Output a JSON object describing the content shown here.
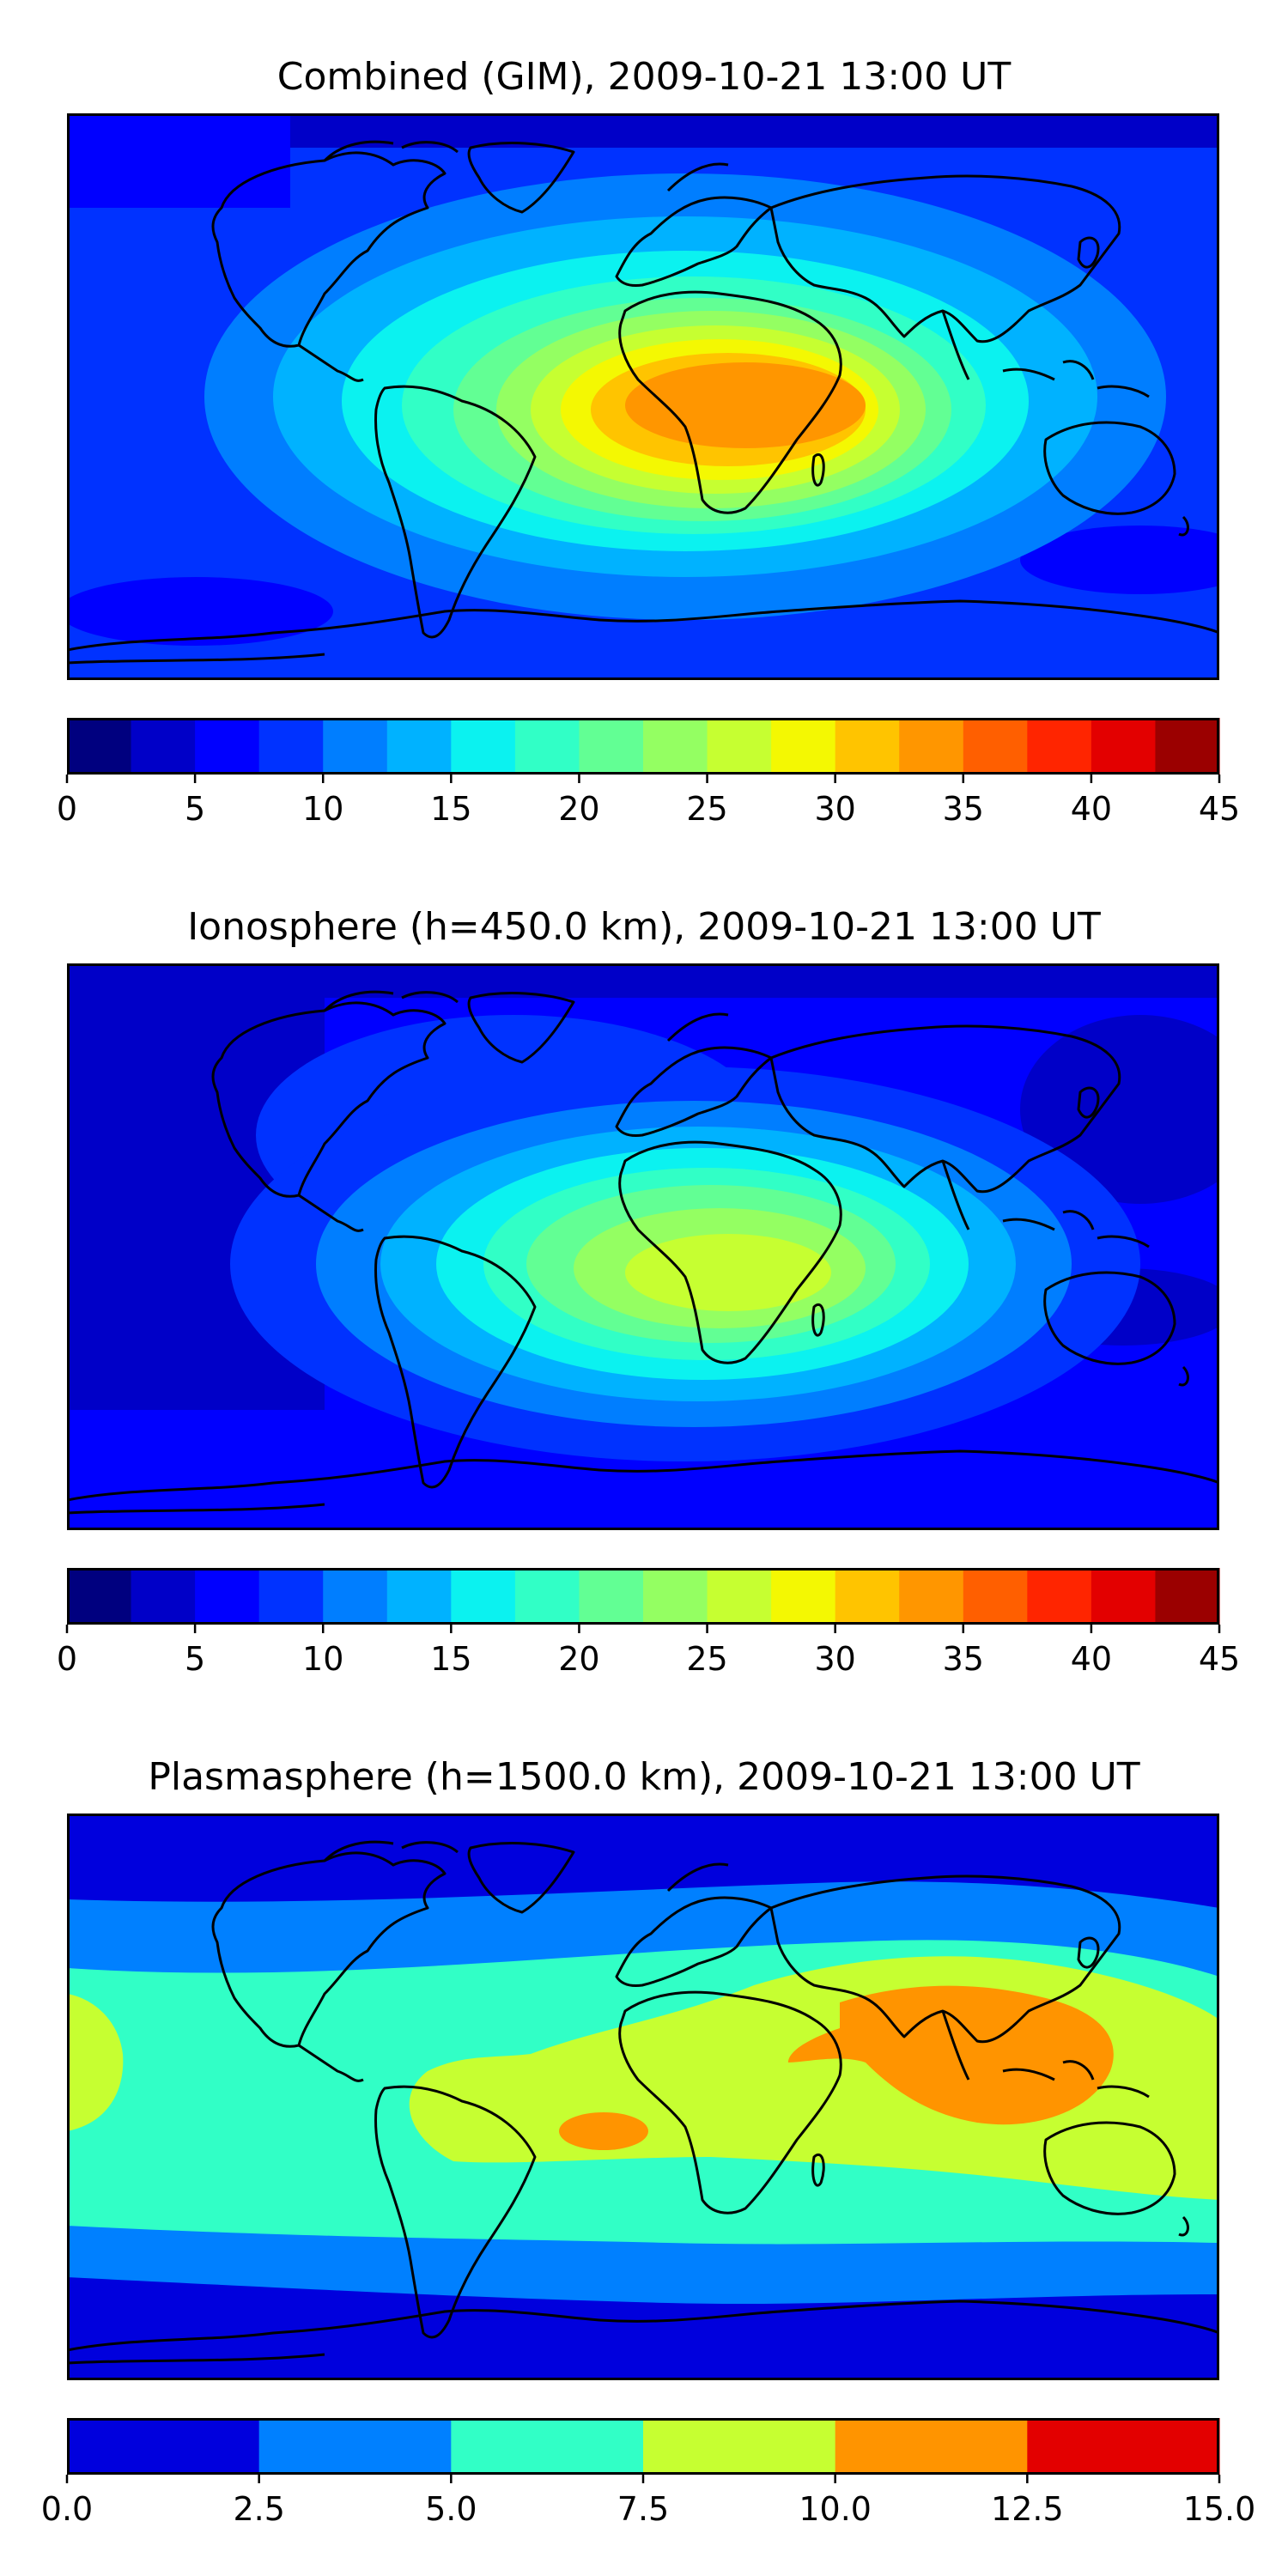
{
  "panels": [
    {
      "title": "Combined (GIM), 2009-10-21 13:00 UT",
      "colorbar": {
        "ticks": [
          "0",
          "5",
          "10",
          "15",
          "20",
          "25",
          "30",
          "35",
          "40",
          "45"
        ],
        "range": [
          0,
          45
        ],
        "levels": 18,
        "colors": [
          "#00007f",
          "#0000c8",
          "#0000ff",
          "#0032ff",
          "#007eff",
          "#00b2ff",
          "#0bf2f0",
          "#31ffc6",
          "#62ff94",
          "#94ff62",
          "#c6ff31",
          "#f4f802",
          "#ffc400",
          "#ff9600",
          "#ff5f00",
          "#ff2500",
          "#e30000",
          "#9b0000"
        ]
      }
    },
    {
      "title": "Ionosphere  (h=450.0 km), 2009-10-21 13:00 UT",
      "colorbar": {
        "ticks": [
          "0",
          "5",
          "10",
          "15",
          "20",
          "25",
          "30",
          "35",
          "40",
          "45"
        ],
        "range": [
          0,
          45
        ],
        "levels": 18,
        "colors": [
          "#00007f",
          "#0000c8",
          "#0000ff",
          "#0032ff",
          "#007eff",
          "#00b2ff",
          "#0bf2f0",
          "#31ffc6",
          "#62ff94",
          "#94ff62",
          "#c6ff31",
          "#f4f802",
          "#ffc400",
          "#ff9600",
          "#ff5f00",
          "#ff2500",
          "#e30000",
          "#9b0000"
        ]
      }
    },
    {
      "title": "Plasmasphere (h=1500.0 km), 2009-10-21 13:00 UT",
      "colorbar": {
        "ticks": [
          "0.0",
          "2.5",
          "5.0",
          "7.5",
          "10.0",
          "12.5",
          "15.0"
        ],
        "range": [
          0,
          15
        ],
        "levels": 6,
        "colors": [
          "#0000dd",
          "#0080ff",
          "#31ffc6",
          "#c6ff31",
          "#ff9400",
          "#e30000"
        ]
      }
    }
  ]
}
